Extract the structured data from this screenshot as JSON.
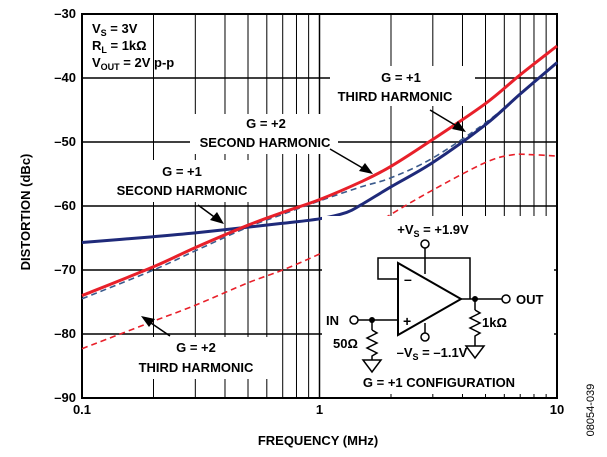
{
  "chart_data": {
    "type": "line",
    "x_scale": "log",
    "xlim": [
      0.1,
      10
    ],
    "ylim": [
      -90,
      -30
    ],
    "xlabel": "FREQUENCY (MHz)",
    "ylabel": "DISTORTION (dBc)",
    "x_ticks": [
      {
        "value": 0.1,
        "label": "0.1"
      },
      {
        "value": 1,
        "label": "1"
      },
      {
        "value": 10,
        "label": "10"
      }
    ],
    "y_ticks": [
      {
        "value": -30,
        "label": "–30"
      },
      {
        "value": -40,
        "label": "–40"
      },
      {
        "value": -50,
        "label": "–50"
      },
      {
        "value": -60,
        "label": "–60"
      },
      {
        "value": -70,
        "label": "–70"
      },
      {
        "value": -80,
        "label": "–80"
      },
      {
        "value": -90,
        "label": "–90"
      }
    ],
    "grid": true,
    "conditions": [
      "V_S = 3V",
      "R_L = 1kΩ",
      "V_OUT = 2V p-p"
    ],
    "series": [
      {
        "label_lines": [
          "G = +2",
          "SECOND HARMONIC"
        ],
        "color": "#e8202a",
        "dash": "solid",
        "x": [
          0.1,
          0.2,
          0.3,
          0.5,
          0.7,
          1.0,
          1.5,
          2.0,
          3.0,
          5.0,
          7.0,
          10.0
        ],
        "y": [
          -74,
          -69.5,
          -66.5,
          -63,
          -61,
          -59,
          -56.2,
          -53.8,
          -49.6,
          -44,
          -39.5,
          -35
        ]
      },
      {
        "label_lines": [
          "G = +1",
          "SECOND HARMONIC"
        ],
        "color": "#1f2a7a",
        "dash": "solid",
        "x": [
          0.1,
          0.2,
          0.3,
          0.5,
          0.7,
          1.0,
          1.3,
          1.5,
          2.0,
          3.0,
          5.0,
          7.0,
          10.0
        ],
        "y": [
          -65.7,
          -64.8,
          -64.2,
          -63.3,
          -62.7,
          -62,
          -61,
          -59.8,
          -57,
          -53.2,
          -47.3,
          -42.5,
          -37.6
        ]
      },
      {
        "label_lines": [
          "G = +1",
          "THIRD HARMONIC"
        ],
        "color": "#3a5a8c",
        "dash": "dashed",
        "x": [
          0.1,
          0.2,
          0.3,
          0.5,
          0.7,
          1.0,
          1.5,
          2.0,
          3.0,
          5.0,
          7.0,
          10.0
        ],
        "y": [
          -74.5,
          -70,
          -67,
          -63.3,
          -61.3,
          -59.2,
          -57,
          -55.6,
          -52.5,
          -47,
          -42.5,
          -37.5
        ]
      },
      {
        "label_lines": [
          "G = +2",
          "THIRD HARMONIC"
        ],
        "color": "#e8202a",
        "dash": "dashed",
        "x": [
          0.1,
          0.2,
          0.3,
          0.5,
          0.7,
          1.0,
          1.5,
          2.0,
          3.0,
          5.0,
          6.5,
          8.0,
          10.0
        ],
        "y": [
          -82.3,
          -78,
          -75.5,
          -72,
          -70,
          -67.5,
          -64.3,
          -61.3,
          -57.5,
          -53.2,
          -52,
          -52,
          -52.2
        ]
      }
    ],
    "inset": {
      "supply_pos": "+V_S = +1.9V",
      "supply_neg": "–V_S = –1.1V",
      "in_label": "IN",
      "out_label": "OUT",
      "r_in": "50Ω",
      "r_load": "1kΩ",
      "config": "G = +1 CONFIGURATION"
    },
    "figure_id": "08054-039"
  }
}
